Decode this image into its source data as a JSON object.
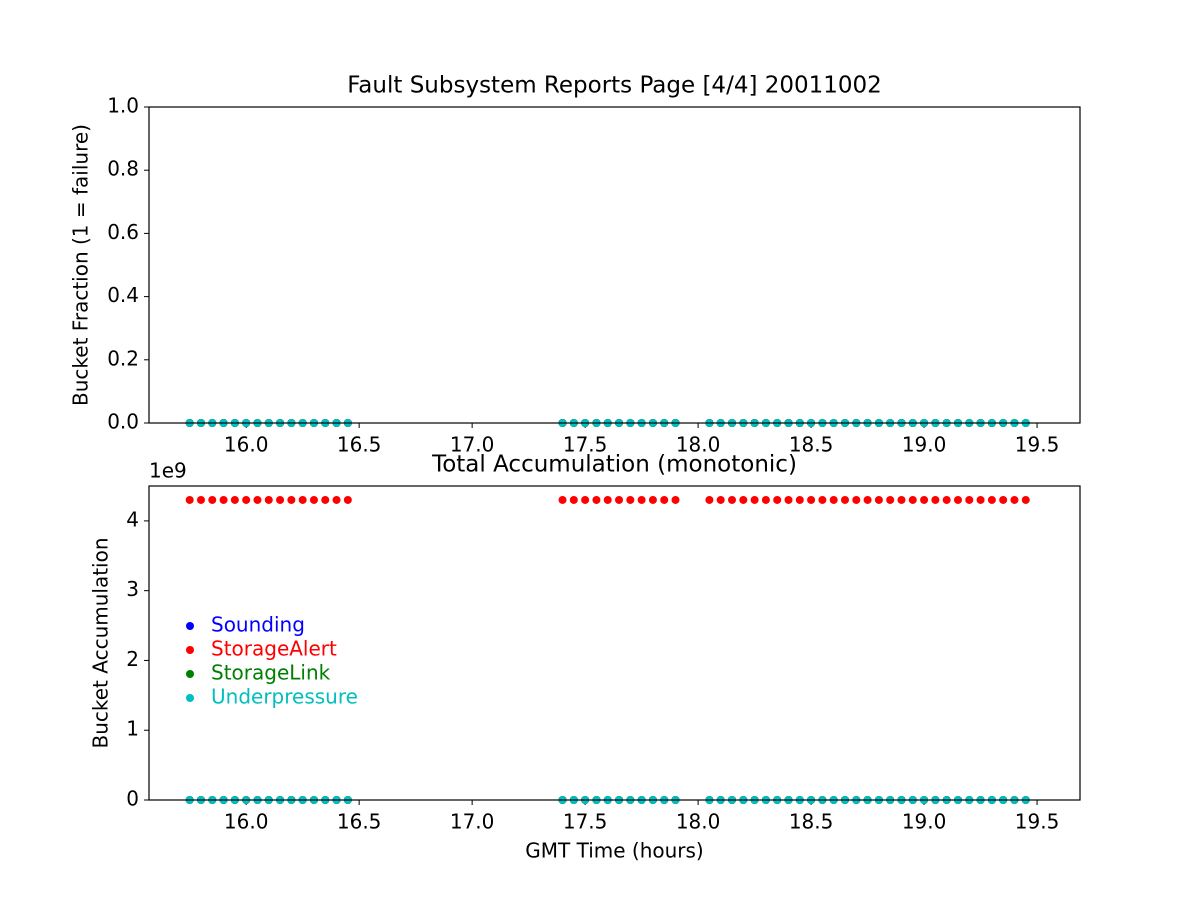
{
  "chart_data": [
    {
      "type": "scatter",
      "title": "Fault Subsystem Reports Page [4/4] 20011002",
      "y_label": "Bucket Fraction (1 = failure)",
      "x": [
        15.75,
        15.8,
        15.85,
        15.9,
        15.95,
        16.0,
        16.05,
        16.1,
        16.15,
        16.2,
        16.25,
        16.3,
        16.35,
        16.4,
        16.45,
        17.4,
        17.45,
        17.5,
        17.55,
        17.6,
        17.65,
        17.7,
        17.75,
        17.8,
        17.85,
        17.9,
        18.05,
        18.1,
        18.15,
        18.2,
        18.25,
        18.3,
        18.35,
        18.4,
        18.45,
        18.5,
        18.55,
        18.6,
        18.65,
        18.7,
        18.75,
        18.8,
        18.85,
        18.9,
        18.95,
        19.0,
        19.05,
        19.1,
        19.15,
        19.2,
        19.25,
        19.3,
        19.35,
        19.4,
        19.45
      ],
      "series": [
        {
          "color": "#0000ff",
          "values": [
            0,
            0,
            0,
            0,
            0,
            0,
            0,
            0,
            0,
            0,
            0,
            0,
            0,
            0,
            0,
            0,
            0,
            0,
            0,
            0,
            0,
            0,
            0,
            0,
            0,
            0,
            0,
            0,
            0,
            0,
            0,
            0,
            0,
            0,
            0,
            0,
            0,
            0,
            0,
            0,
            0,
            0,
            0,
            0,
            0,
            0,
            0,
            0,
            0,
            0,
            0,
            0,
            0,
            0,
            0
          ]
        },
        {
          "color": "#ff0000",
          "values": [
            0,
            0,
            0,
            0,
            0,
            0,
            0,
            0,
            0,
            0,
            0,
            0,
            0,
            0,
            0,
            0,
            0,
            0,
            0,
            0,
            0,
            0,
            0,
            0,
            0,
            0,
            0,
            0,
            0,
            0,
            0,
            0,
            0,
            0,
            0,
            0,
            0,
            0,
            0,
            0,
            0,
            0,
            0,
            0,
            0,
            0,
            0,
            0,
            0,
            0,
            0,
            0,
            0,
            0,
            0
          ]
        },
        {
          "color": "#008000",
          "values": [
            0,
            0,
            0,
            0,
            0,
            0,
            0,
            0,
            0,
            0,
            0,
            0,
            0,
            0,
            0,
            0,
            0,
            0,
            0,
            0,
            0,
            0,
            0,
            0,
            0,
            0,
            0,
            0,
            0,
            0,
            0,
            0,
            0,
            0,
            0,
            0,
            0,
            0,
            0,
            0,
            0,
            0,
            0,
            0,
            0,
            0,
            0,
            0,
            0,
            0,
            0,
            0,
            0,
            0,
            0
          ]
        },
        {
          "color": "#00bfbf",
          "values": [
            0,
            0,
            0,
            0,
            0,
            0,
            0,
            0,
            0,
            0,
            0,
            0,
            0,
            0,
            0,
            0,
            0,
            0,
            0,
            0,
            0,
            0,
            0,
            0,
            0,
            0,
            0,
            0,
            0,
            0,
            0,
            0,
            0,
            0,
            0,
            0,
            0,
            0,
            0,
            0,
            0,
            0,
            0,
            0,
            0,
            0,
            0,
            0,
            0,
            0,
            0,
            0,
            0,
            0,
            0
          ]
        }
      ],
      "xlim": [
        15.57,
        19.69
      ],
      "xticks": [
        {
          "value": 16,
          "label": "16.0"
        },
        {
          "value": 16.5,
          "label": "16.5"
        },
        {
          "value": 17,
          "label": "17.0"
        },
        {
          "value": 17.5,
          "label": "17.5"
        },
        {
          "value": 18,
          "label": "18.0"
        },
        {
          "value": 18.5,
          "label": "18.5"
        },
        {
          "value": 19,
          "label": "19.0"
        },
        {
          "value": 19.5,
          "label": "19.5"
        }
      ],
      "ylim": [
        0,
        1
      ],
      "yticks": [
        {
          "value": 0,
          "label": "0.0"
        },
        {
          "value": 0.2,
          "label": "0.2"
        },
        {
          "value": 0.4,
          "label": "0.4"
        },
        {
          "value": 0.6,
          "label": "0.6"
        },
        {
          "value": 0.8,
          "label": "0.8"
        },
        {
          "value": 1,
          "label": "1.0"
        }
      ]
    },
    {
      "type": "scatter",
      "title": "Total Accumulation (monotonic)",
      "x_label": "GMT Time (hours)",
      "y_label": "Bucket Accumulation",
      "y_offset_label": "1e9",
      "legend": "lower left",
      "x": [
        15.75,
        15.8,
        15.85,
        15.9,
        15.95,
        16.0,
        16.05,
        16.1,
        16.15,
        16.2,
        16.25,
        16.3,
        16.35,
        16.4,
        16.45,
        17.4,
        17.45,
        17.5,
        17.55,
        17.6,
        17.65,
        17.7,
        17.75,
        17.8,
        17.85,
        17.9,
        18.05,
        18.1,
        18.15,
        18.2,
        18.25,
        18.3,
        18.35,
        18.4,
        18.45,
        18.5,
        18.55,
        18.6,
        18.65,
        18.7,
        18.75,
        18.8,
        18.85,
        18.9,
        18.95,
        19.0,
        19.05,
        19.1,
        19.15,
        19.2,
        19.25,
        19.3,
        19.35,
        19.4,
        19.45
      ],
      "series": [
        {
          "name": "Sounding",
          "color": "#0000ff",
          "values": [
            0,
            0,
            0,
            0,
            0,
            0,
            0,
            0,
            0,
            0,
            0,
            0,
            0,
            0,
            0,
            0,
            0,
            0,
            0,
            0,
            0,
            0,
            0,
            0,
            0,
            0,
            0,
            0,
            0,
            0,
            0,
            0,
            0,
            0,
            0,
            0,
            0,
            0,
            0,
            0,
            0,
            0,
            0,
            0,
            0,
            0,
            0,
            0,
            0,
            0,
            0,
            0,
            0,
            0,
            0
          ]
        },
        {
          "name": "StorageAlert",
          "color": "#ff0000",
          "values": [
            4300000000,
            4300000000,
            4300000000,
            4300000000,
            4300000000,
            4300000000,
            4300000000,
            4300000000,
            4300000000,
            4300000000,
            4300000000,
            4300000000,
            4300000000,
            4300000000,
            4300000000,
            4300000000,
            4300000000,
            4300000000,
            4300000000,
            4300000000,
            4300000000,
            4300000000,
            4300000000,
            4300000000,
            4300000000,
            4300000000,
            4300000000,
            4300000000,
            4300000000,
            4300000000,
            4300000000,
            4300000000,
            4300000000,
            4300000000,
            4300000000,
            4300000000,
            4300000000,
            4300000000,
            4300000000,
            4300000000,
            4300000000,
            4300000000,
            4300000000,
            4300000000,
            4300000000,
            4300000000,
            4300000000,
            4300000000,
            4300000000,
            4300000000,
            4300000000,
            4300000000,
            4300000000,
            4300000000,
            4300000000
          ]
        },
        {
          "name": "StorageLink",
          "color": "#008000",
          "values": [
            0,
            0,
            0,
            0,
            0,
            0,
            0,
            0,
            0,
            0,
            0,
            0,
            0,
            0,
            0,
            0,
            0,
            0,
            0,
            0,
            0,
            0,
            0,
            0,
            0,
            0,
            0,
            0,
            0,
            0,
            0,
            0,
            0,
            0,
            0,
            0,
            0,
            0,
            0,
            0,
            0,
            0,
            0,
            0,
            0,
            0,
            0,
            0,
            0,
            0,
            0,
            0,
            0,
            0,
            0
          ]
        },
        {
          "name": "Underpressure",
          "color": "#00bfbf",
          "values": [
            0,
            0,
            0,
            0,
            0,
            0,
            0,
            0,
            0,
            0,
            0,
            0,
            0,
            0,
            0,
            0,
            0,
            0,
            0,
            0,
            0,
            0,
            0,
            0,
            0,
            0,
            0,
            0,
            0,
            0,
            0,
            0,
            0,
            0,
            0,
            0,
            0,
            0,
            0,
            0,
            0,
            0,
            0,
            0,
            0,
            0,
            0,
            0,
            0,
            0,
            0,
            0,
            0,
            0,
            0
          ]
        }
      ],
      "xlim": [
        15.57,
        19.69
      ],
      "xticks": [
        {
          "value": 16,
          "label": "16.0"
        },
        {
          "value": 16.5,
          "label": "16.5"
        },
        {
          "value": 17,
          "label": "17.0"
        },
        {
          "value": 17.5,
          "label": "17.5"
        },
        {
          "value": 18,
          "label": "18.0"
        },
        {
          "value": 18.5,
          "label": "18.5"
        },
        {
          "value": 19,
          "label": "19.0"
        },
        {
          "value": 19.5,
          "label": "19.5"
        }
      ],
      "ylim": [
        0,
        4500000000
      ],
      "yticks": [
        {
          "value": 0,
          "label": "0"
        },
        {
          "value": 1000000000,
          "label": "1"
        },
        {
          "value": 2000000000,
          "label": "2"
        },
        {
          "value": 3000000000,
          "label": "3"
        },
        {
          "value": 4000000000,
          "label": "4"
        }
      ]
    }
  ]
}
